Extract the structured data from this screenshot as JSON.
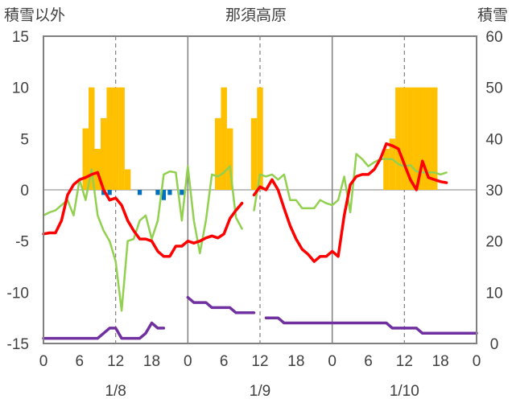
{
  "chart_data": {
    "type": "combo",
    "title": "那須高原",
    "left_axis": {
      "label": "積雪以外",
      "ylim": [
        -15,
        15
      ],
      "ticks": [
        "15",
        "10",
        "5",
        "0",
        "-5",
        "-10",
        "-15"
      ]
    },
    "right_axis": {
      "label": "積雪",
      "ylim": [
        0,
        60
      ],
      "ticks": [
        "60",
        "50",
        "40",
        "30",
        "20",
        "10",
        "0"
      ]
    },
    "x_ticks": [
      "0",
      "6",
      "12",
      "18",
      "0",
      "6",
      "12",
      "18",
      "0",
      "6",
      "12",
      "18",
      "0"
    ],
    "x_range_hours": [
      0,
      72
    ],
    "day_labels": [
      "1/8",
      "1/9",
      "1/10"
    ],
    "grid": "dashed vertical at 12:00 of each day, solid vertical at 0:00",
    "colors": {
      "precip_bar": "#FFC000",
      "sunshine_bar": "#0070C0",
      "temperature": "#FF0000",
      "wind": "#92D050",
      "snow_depth": "#7030A0",
      "axis": "#808080",
      "grid": "#808080"
    },
    "precip_bars": [
      {
        "h": 7,
        "v": 6
      },
      {
        "h": 8,
        "v": 10
      },
      {
        "h": 9,
        "v": 4
      },
      {
        "h": 10,
        "v": 7
      },
      {
        "h": 11,
        "v": 10
      },
      {
        "h": 12,
        "v": 10
      },
      {
        "h": 13,
        "v": 10
      },
      {
        "h": 14,
        "v": 2
      },
      {
        "h": 29,
        "v": 7
      },
      {
        "h": 30,
        "v": 10
      },
      {
        "h": 31,
        "v": 6
      },
      {
        "h": 35,
        "v": 7
      },
      {
        "h": 36,
        "v": 10
      },
      {
        "h": 57,
        "v": 4
      },
      {
        "h": 58,
        "v": 5
      },
      {
        "h": 59,
        "v": 10
      },
      {
        "h": 60,
        "v": 10
      },
      {
        "h": 61,
        "v": 10
      },
      {
        "h": 62,
        "v": 10
      },
      {
        "h": 63,
        "v": 10
      },
      {
        "h": 64,
        "v": 10
      },
      {
        "h": 65,
        "v": 10
      }
    ],
    "sunshine_bars": [
      {
        "h": 10,
        "v": -0.5
      },
      {
        "h": 11,
        "v": -0.5
      },
      {
        "h": 16,
        "v": -0.5
      },
      {
        "h": 19,
        "v": -0.5
      },
      {
        "h": 20,
        "v": -1
      },
      {
        "h": 21,
        "v": -0.5
      },
      {
        "h": 23,
        "v": -0.5
      }
    ],
    "temperature": [
      [
        [
          0,
          -4.3
        ],
        [
          1,
          -4.2
        ],
        [
          2,
          -4.2
        ],
        [
          3,
          -3
        ],
        [
          4,
          -0.5
        ],
        [
          5,
          0.5
        ],
        [
          6,
          1
        ],
        [
          7,
          1.2
        ],
        [
          8,
          1.5
        ],
        [
          9,
          1.7
        ],
        [
          10,
          0
        ],
        [
          11,
          -1
        ],
        [
          12,
          -0.8
        ],
        [
          13,
          -1.5
        ],
        [
          14,
          -3
        ],
        [
          15,
          -4
        ],
        [
          16,
          -4.8
        ],
        [
          17,
          -4.8
        ],
        [
          18,
          -5
        ],
        [
          19,
          -6
        ],
        [
          20,
          -6.5
        ],
        [
          21,
          -6.5
        ],
        [
          22,
          -5.5
        ],
        [
          23,
          -5.5
        ],
        [
          24,
          -5
        ],
        [
          25,
          -5.2
        ],
        [
          26,
          -5
        ],
        [
          27,
          -4.7
        ],
        [
          28,
          -4.5
        ],
        [
          29,
          -4.7
        ],
        [
          30,
          -4.3
        ],
        [
          31,
          -2.8
        ],
        [
          32,
          -2
        ],
        [
          33,
          -1.3
        ]
      ],
      [
        [
          35,
          -0.5
        ],
        [
          36,
          0.3
        ],
        [
          37,
          0
        ],
        [
          38,
          1
        ],
        [
          39,
          0
        ],
        [
          40,
          -1.8
        ],
        [
          41,
          -3.5
        ],
        [
          42,
          -4.8
        ],
        [
          43,
          -5.8
        ],
        [
          44,
          -6.3
        ],
        [
          45,
          -7
        ],
        [
          46,
          -6.5
        ],
        [
          47,
          -6.5
        ],
        [
          48,
          -6
        ],
        [
          49,
          -6.5
        ],
        [
          50,
          -2.5
        ],
        [
          51,
          0.5
        ],
        [
          52,
          1.3
        ],
        [
          53,
          1.5
        ],
        [
          54,
          1.5
        ],
        [
          55,
          2
        ],
        [
          56,
          3
        ],
        [
          57,
          4.5
        ],
        [
          58,
          4.3
        ],
        [
          59,
          4
        ],
        [
          60,
          2.5
        ],
        [
          61,
          1
        ],
        [
          62,
          0
        ],
        [
          63,
          2.8
        ],
        [
          64,
          1.2
        ],
        [
          65,
          1
        ],
        [
          66,
          0.8
        ],
        [
          67,
          0.7
        ]
      ]
    ],
    "wind": [
      [
        [
          0,
          -2.5
        ],
        [
          1,
          -2.2
        ],
        [
          2,
          -2
        ],
        [
          3,
          -1.5
        ],
        [
          4,
          -1
        ],
        [
          5,
          -2.5
        ],
        [
          6,
          1
        ],
        [
          7,
          -1
        ],
        [
          8,
          2
        ],
        [
          9,
          -2.5
        ],
        [
          10,
          -4
        ],
        [
          11,
          -5
        ],
        [
          12,
          -7
        ],
        [
          13,
          -11.8
        ],
        [
          14,
          -5
        ],
        [
          15,
          -4.8
        ],
        [
          16,
          -3
        ],
        [
          17,
          -2.5
        ],
        [
          18,
          -4.8
        ],
        [
          19,
          -3
        ],
        [
          20,
          1.5
        ],
        [
          21,
          1.8
        ],
        [
          22,
          1.7
        ],
        [
          23,
          -3
        ],
        [
          24,
          2.3
        ],
        [
          25,
          -3
        ],
        [
          26,
          -6.2
        ],
        [
          27,
          -3
        ],
        [
          28,
          1.5
        ],
        [
          29,
          1.3
        ],
        [
          30,
          1.7
        ],
        [
          31,
          2.3
        ],
        [
          32,
          -2.7
        ],
        [
          33,
          -3.8
        ]
      ],
      [
        [
          35,
          -2
        ],
        [
          36,
          1.5
        ],
        [
          37,
          1.3
        ],
        [
          38,
          1.5
        ],
        [
          39,
          1
        ],
        [
          40,
          1.5
        ],
        [
          41,
          -1
        ],
        [
          42,
          -1
        ],
        [
          43,
          -1.8
        ],
        [
          44,
          -1.8
        ],
        [
          45,
          -1.8
        ],
        [
          46,
          -1
        ],
        [
          47,
          -1.3
        ],
        [
          48,
          -1.5
        ],
        [
          49,
          -1
        ],
        [
          50,
          1.3
        ],
        [
          51,
          -2.2
        ],
        [
          52,
          3.5
        ],
        [
          53,
          3
        ],
        [
          54,
          2.3
        ],
        [
          55,
          2.7
        ],
        [
          56,
          3
        ],
        [
          57,
          3
        ],
        [
          58,
          3
        ],
        [
          59,
          2.5
        ],
        [
          60,
          2.3
        ],
        [
          61,
          2.4
        ],
        [
          62,
          1.8
        ],
        [
          63,
          1.7
        ],
        [
          64,
          1.7
        ],
        [
          65,
          1.7
        ],
        [
          66,
          1.5
        ],
        [
          67,
          1.7
        ]
      ]
    ],
    "snow_depth": [
      [
        [
          0,
          1
        ],
        [
          1,
          1
        ],
        [
          2,
          1
        ],
        [
          3,
          1
        ],
        [
          4,
          1
        ],
        [
          5,
          1
        ],
        [
          6,
          1
        ],
        [
          7,
          1
        ],
        [
          8,
          1
        ],
        [
          9,
          1
        ],
        [
          10,
          2
        ],
        [
          11,
          3
        ],
        [
          12,
          3
        ],
        [
          13,
          1
        ],
        [
          14,
          1
        ],
        [
          15,
          1
        ],
        [
          16,
          1
        ],
        [
          17,
          2
        ],
        [
          18,
          4
        ],
        [
          19,
          3
        ],
        [
          20,
          3
        ]
      ],
      [
        [
          24,
          9
        ],
        [
          25,
          8
        ],
        [
          26,
          8
        ],
        [
          27,
          8
        ],
        [
          28,
          7
        ],
        [
          29,
          7
        ],
        [
          30,
          7
        ],
        [
          31,
          7
        ],
        [
          32,
          6
        ],
        [
          33,
          6
        ],
        [
          34,
          6
        ],
        [
          35,
          6
        ]
      ],
      [
        [
          37,
          5
        ],
        [
          38,
          5
        ],
        [
          39,
          5
        ],
        [
          40,
          4
        ],
        [
          41,
          4
        ],
        [
          42,
          4
        ],
        [
          43,
          4
        ],
        [
          44,
          4
        ],
        [
          45,
          4
        ],
        [
          46,
          4
        ],
        [
          47,
          4
        ],
        [
          48,
          4
        ],
        [
          49,
          4
        ],
        [
          50,
          4
        ],
        [
          51,
          4
        ],
        [
          52,
          4
        ],
        [
          53,
          4
        ],
        [
          54,
          4
        ],
        [
          55,
          4
        ],
        [
          56,
          4
        ],
        [
          57,
          4
        ],
        [
          58,
          3
        ],
        [
          59,
          3
        ],
        [
          60,
          3
        ],
        [
          61,
          3
        ],
        [
          62,
          3
        ],
        [
          63,
          2
        ],
        [
          64,
          2
        ],
        [
          65,
          2
        ],
        [
          66,
          2
        ],
        [
          67,
          2
        ],
        [
          68,
          2
        ],
        [
          69,
          2
        ],
        [
          70,
          2
        ],
        [
          71,
          2
        ],
        [
          72,
          2
        ]
      ]
    ]
  }
}
